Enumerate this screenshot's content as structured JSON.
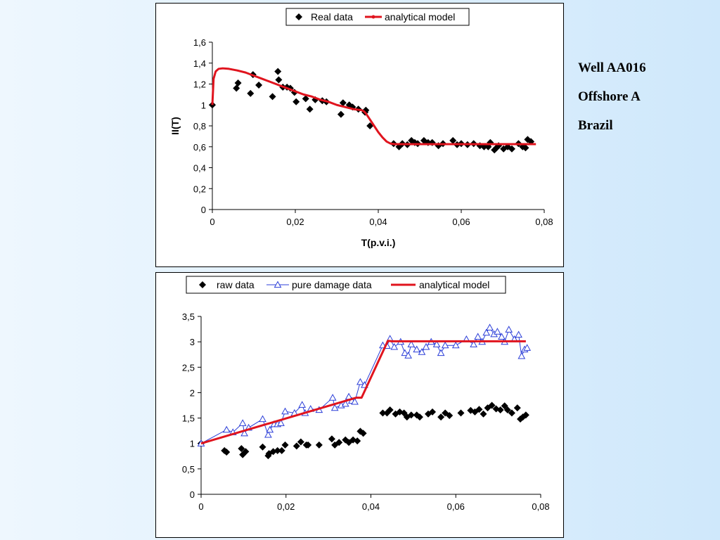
{
  "side_labels": {
    "well": "Well AA016",
    "location": "Offshore A",
    "country": "Brazil"
  },
  "chart_data": [
    {
      "type": "scatter",
      "title": "",
      "xlabel": "T(p.v.i.)",
      "ylabel": "II(T)",
      "xlim": [
        0,
        0.08
      ],
      "ylim": [
        0,
        1.6
      ],
      "xticks": [
        0,
        0.02,
        0.04,
        0.06,
        0.08
      ],
      "xtick_labels": [
        "0",
        "0,02",
        "0,04",
        "0,06",
        "0,08"
      ],
      "yticks": [
        0,
        0.2,
        0.4,
        0.6,
        0.8,
        1,
        1.2,
        1.4,
        1.6
      ],
      "ytick_labels": [
        "0",
        "0,2",
        "0,4",
        "0,6",
        "0,8",
        "1",
        "1,2",
        "1,4",
        "1,6"
      ],
      "grid": false,
      "legend": "top-center",
      "colors": {
        "points": "#000000",
        "model": "#e0141e"
      },
      "series": [
        {
          "name": "Real data",
          "kind": "scatter",
          "marker": "diamond",
          "x": [
            0,
            0.0058,
            0.0062,
            0.0092,
            0.0098,
            0.0112,
            0.0145,
            0.0158,
            0.016,
            0.017,
            0.018,
            0.0188,
            0.0198,
            0.0202,
            0.0225,
            0.0235,
            0.0248,
            0.0265,
            0.0275,
            0.031,
            0.0315,
            0.033,
            0.0338,
            0.0352,
            0.0368,
            0.037,
            0.038,
            0.0437,
            0.045,
            0.0458,
            0.047,
            0.048,
            0.0488,
            0.0495,
            0.051,
            0.052,
            0.053,
            0.0545,
            0.0556,
            0.058,
            0.059,
            0.06,
            0.0615,
            0.063,
            0.0645,
            0.0655,
            0.0665,
            0.067,
            0.068,
            0.0685,
            0.069,
            0.0702,
            0.0712,
            0.0722,
            0.0738,
            0.0748,
            0.0755,
            0.076,
            0.0768
          ],
          "y": [
            1.0,
            1.16,
            1.21,
            1.11,
            1.29,
            1.19,
            1.08,
            1.32,
            1.24,
            1.17,
            1.17,
            1.16,
            1.12,
            1.03,
            1.06,
            0.96,
            1.05,
            1.04,
            1.03,
            0.91,
            1.02,
            1.0,
            0.98,
            0.96,
            0.93,
            0.95,
            0.8,
            0.63,
            0.6,
            0.63,
            0.62,
            0.66,
            0.64,
            0.63,
            0.66,
            0.64,
            0.64,
            0.61,
            0.63,
            0.66,
            0.62,
            0.63,
            0.62,
            0.63,
            0.61,
            0.6,
            0.6,
            0.64,
            0.57,
            0.59,
            0.61,
            0.58,
            0.6,
            0.58,
            0.63,
            0.6,
            0.59,
            0.67,
            0.65
          ]
        },
        {
          "name": "analytical model",
          "kind": "line",
          "x": [
            0,
            0.0003,
            0.0008,
            0.0015,
            0.0025,
            0.004,
            0.006,
            0.008,
            0.01,
            0.012,
            0.014,
            0.016,
            0.018,
            0.02,
            0.022,
            0.024,
            0.026,
            0.028,
            0.03,
            0.032,
            0.034,
            0.036,
            0.0365,
            0.037,
            0.038,
            0.039,
            0.04,
            0.041,
            0.042,
            0.043,
            0.044,
            0.045,
            0.05,
            0.055,
            0.06,
            0.065,
            0.07,
            0.075,
            0.078
          ],
          "y": [
            1.0,
            1.25,
            1.32,
            1.345,
            1.35,
            1.345,
            1.33,
            1.31,
            1.28,
            1.25,
            1.22,
            1.19,
            1.16,
            1.13,
            1.1,
            1.08,
            1.05,
            1.03,
            1.0,
            0.98,
            0.96,
            0.95,
            0.94,
            0.92,
            0.86,
            0.8,
            0.74,
            0.69,
            0.65,
            0.63,
            0.625,
            0.625,
            0.625,
            0.625,
            0.625,
            0.625,
            0.625,
            0.625,
            0.625
          ]
        }
      ]
    },
    {
      "type": "scatter",
      "title": "",
      "xlabel": "",
      "ylabel": "",
      "xlim": [
        0,
        0.08
      ],
      "ylim": [
        0,
        3.5
      ],
      "xticks": [
        0,
        0.02,
        0.04,
        0.06,
        0.08
      ],
      "xtick_labels": [
        "0",
        "0,02",
        "0,04",
        "0,06",
        "0,08"
      ],
      "yticks": [
        0,
        0.5,
        1,
        1.5,
        2,
        2.5,
        3,
        3.5
      ],
      "ytick_labels": [
        "0",
        "0,5",
        "1",
        "1,5",
        "2",
        "2,5",
        "3",
        "3,5"
      ],
      "grid": false,
      "legend": "top-center",
      "colors": {
        "raw": "#000000",
        "damage": "#2c3fd8",
        "model": "#e0141e"
      },
      "series": [
        {
          "name": "raw data",
          "kind": "scatter",
          "marker": "diamond",
          "x": [
            0,
            0.0055,
            0.006,
            0.0095,
            0.0098,
            0.0105,
            0.0145,
            0.0158,
            0.016,
            0.017,
            0.018,
            0.019,
            0.0198,
            0.0225,
            0.0235,
            0.0248,
            0.0252,
            0.0278,
            0.0308,
            0.0315,
            0.0325,
            0.034,
            0.0348,
            0.0358,
            0.0368,
            0.0375,
            0.0382,
            0.0428,
            0.0438,
            0.0445,
            0.0458,
            0.0468,
            0.0478,
            0.0485,
            0.0495,
            0.0508,
            0.0515,
            0.0535,
            0.0545,
            0.0565,
            0.0575,
            0.0585,
            0.0612,
            0.0635,
            0.0645,
            0.0655,
            0.0665,
            0.0675,
            0.0685,
            0.0695,
            0.0705,
            0.0715,
            0.0722,
            0.0732,
            0.0745,
            0.0752,
            0.0758,
            0.0765
          ],
          "y": [
            1.0,
            0.86,
            0.83,
            0.9,
            0.78,
            0.84,
            0.93,
            0.76,
            0.8,
            0.84,
            0.86,
            0.86,
            0.97,
            0.95,
            1.03,
            0.97,
            0.97,
            0.97,
            1.09,
            0.97,
            1.02,
            1.07,
            1.02,
            1.07,
            1.05,
            1.24,
            1.2,
            1.6,
            1.6,
            1.66,
            1.58,
            1.62,
            1.6,
            1.52,
            1.56,
            1.56,
            1.52,
            1.58,
            1.62,
            1.52,
            1.6,
            1.55,
            1.6,
            1.65,
            1.62,
            1.67,
            1.58,
            1.7,
            1.75,
            1.68,
            1.66,
            1.74,
            1.66,
            1.6,
            1.7,
            1.48,
            1.52,
            1.56
          ]
        },
        {
          "name": "pure damage data",
          "kind": "line-markers",
          "marker": "triangle-open",
          "x": [
            0,
            0.006,
            0.0075,
            0.0098,
            0.0102,
            0.0112,
            0.0145,
            0.0158,
            0.0162,
            0.0172,
            0.018,
            0.0188,
            0.0198,
            0.022,
            0.0238,
            0.0245,
            0.0258,
            0.0278,
            0.031,
            0.0315,
            0.033,
            0.034,
            0.0348,
            0.0355,
            0.0362,
            0.0375,
            0.0385,
            0.0428,
            0.0438,
            0.0445,
            0.0455,
            0.047,
            0.048,
            0.0488,
            0.0495,
            0.0508,
            0.052,
            0.053,
            0.0542,
            0.0555,
            0.0565,
            0.0575,
            0.06,
            0.0625,
            0.0642,
            0.0652,
            0.0662,
            0.0672,
            0.068,
            0.069,
            0.0698,
            0.0708,
            0.0715,
            0.0725,
            0.0738,
            0.0748,
            0.0755,
            0.0762,
            0.0768
          ],
          "y": [
            1.0,
            1.27,
            1.22,
            1.4,
            1.2,
            1.31,
            1.48,
            1.17,
            1.27,
            1.38,
            1.38,
            1.4,
            1.63,
            1.6,
            1.76,
            1.6,
            1.68,
            1.66,
            1.9,
            1.7,
            1.75,
            1.78,
            1.92,
            1.84,
            1.82,
            2.21,
            2.15,
            2.93,
            2.92,
            3.06,
            2.9,
            3.0,
            2.78,
            2.73,
            2.95,
            2.85,
            2.8,
            2.9,
            3.0,
            2.95,
            2.78,
            2.93,
            2.93,
            3.05,
            2.95,
            3.1,
            3.0,
            3.18,
            3.28,
            3.15,
            3.2,
            3.1,
            3.0,
            3.24,
            3.05,
            3.14,
            2.72,
            2.85,
            2.88
          ]
        },
        {
          "name": "analytical model",
          "kind": "line",
          "x": [
            0,
            0.0365,
            0.0378,
            0.044,
            0.045,
            0.0765
          ],
          "y": [
            1.0,
            1.9,
            1.9,
            3.02,
            3.01,
            3.01
          ]
        }
      ]
    }
  ]
}
